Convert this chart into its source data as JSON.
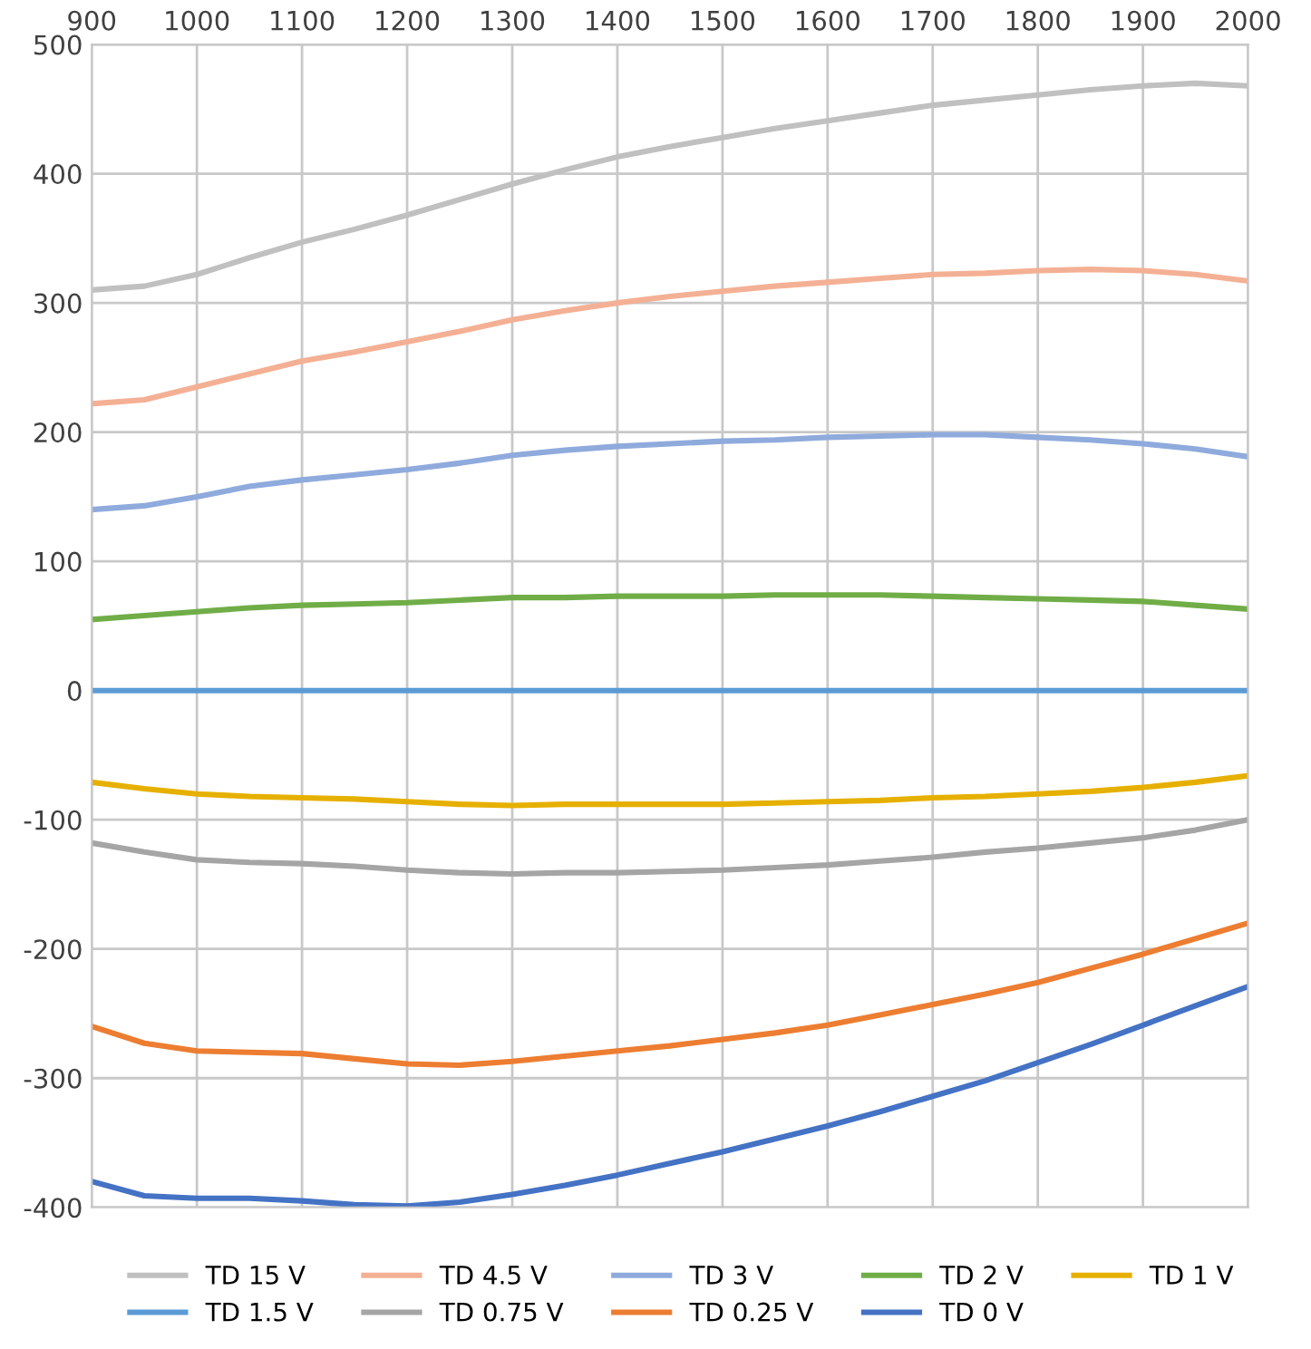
{
  "chart_data": {
    "type": "line",
    "x": [
      900,
      950,
      1000,
      1050,
      1100,
      1150,
      1200,
      1250,
      1300,
      1350,
      1400,
      1450,
      1500,
      1550,
      1600,
      1650,
      1700,
      1750,
      1800,
      1850,
      1900,
      1950,
      2000
    ],
    "series": [
      {
        "name": "TD 15 V",
        "color": "#c0c0c0",
        "values": [
          310,
          313,
          322,
          335,
          347,
          357,
          368,
          380,
          392,
          403,
          413,
          421,
          428,
          435,
          441,
          447,
          453,
          457,
          461,
          465,
          468,
          470,
          468
        ]
      },
      {
        "name": "TD 4.5 V",
        "color": "#f4b094",
        "values": [
          222,
          225,
          235,
          245,
          255,
          262,
          270,
          278,
          287,
          294,
          300,
          305,
          309,
          313,
          316,
          319,
          322,
          323,
          325,
          326,
          325,
          322,
          317
        ]
      },
      {
        "name": "TD 3 V",
        "color": "#8faadc",
        "values": [
          140,
          143,
          150,
          158,
          163,
          167,
          171,
          176,
          182,
          186,
          189,
          191,
          193,
          194,
          196,
          197,
          198,
          198,
          196,
          194,
          191,
          187,
          181
        ]
      },
      {
        "name": "TD 2 V",
        "color": "#70ad47",
        "values": [
          55,
          58,
          61,
          64,
          66,
          67,
          68,
          70,
          72,
          72,
          73,
          73,
          73,
          74,
          74,
          74,
          73,
          72,
          71,
          70,
          69,
          66,
          63
        ]
      },
      {
        "name": "TD 1 V",
        "color": "#e6b000",
        "values": [
          -71,
          -76,
          -80,
          -82,
          -83,
          -84,
          -86,
          -88,
          -89,
          -88,
          -88,
          -88,
          -88,
          -87,
          -86,
          -85,
          -83,
          -82,
          -80,
          -78,
          -75,
          -71,
          -66
        ]
      },
      {
        "name": "TD 1.5 V",
        "color": "#5b9bd5",
        "values": [
          0,
          0,
          0,
          0,
          0,
          0,
          0,
          0,
          0,
          0,
          0,
          0,
          0,
          0,
          0,
          0,
          0,
          0,
          0,
          0,
          0,
          0,
          0
        ]
      },
      {
        "name": "TD 0.75 V",
        "color": "#a5a5a5",
        "values": [
          -118,
          -125,
          -131,
          -133,
          -134,
          -136,
          -139,
          -141,
          -142,
          -141,
          -141,
          -140,
          -139,
          -137,
          -135,
          -132,
          -129,
          -125,
          -122,
          -118,
          -114,
          -108,
          -100
        ]
      },
      {
        "name": "TD 0.25 V",
        "color": "#ed7d31",
        "values": [
          -260,
          -273,
          -279,
          -280,
          -281,
          -285,
          -289,
          -290,
          -287,
          -283,
          -279,
          -275,
          -270,
          -265,
          -259,
          -251,
          -243,
          -235,
          -226,
          -215,
          -204,
          -192,
          -180
        ]
      },
      {
        "name": "TD 0 V",
        "color": "#4472c4",
        "values": [
          -380,
          -391,
          -393,
          -393,
          -395,
          -398,
          -399,
          -396,
          -390,
          -383,
          -375,
          -366,
          -357,
          -347,
          -337,
          -326,
          -314,
          -302,
          -288,
          -274,
          -259,
          -244,
          -229
        ]
      }
    ],
    "xlim": [
      900,
      2000
    ],
    "xticks": [
      900,
      1000,
      1100,
      1200,
      1300,
      1400,
      1500,
      1600,
      1700,
      1800,
      1900,
      2000
    ],
    "ylim": [
      -400,
      500
    ],
    "yticks": [
      -400,
      -300,
      -200,
      -100,
      0,
      100,
      200,
      300,
      400,
      500
    ],
    "grid": true,
    "legend": "bottom",
    "marker": "none",
    "line_style": "solid"
  }
}
